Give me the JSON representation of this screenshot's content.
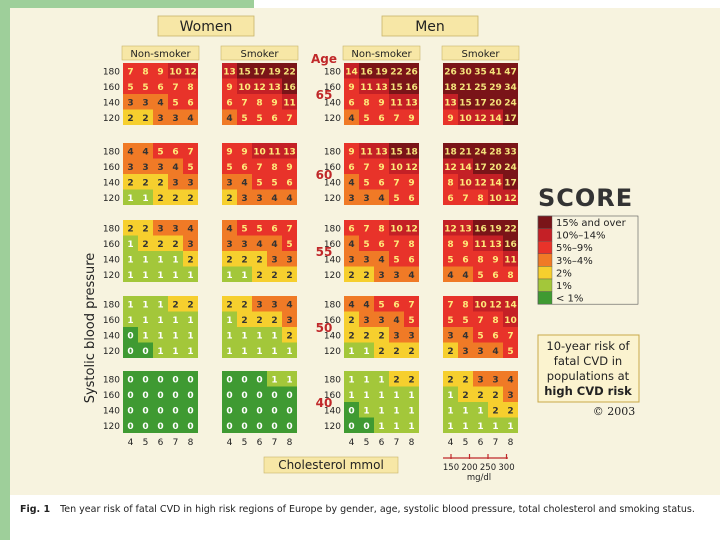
{
  "chart_data": {
    "type": "heatmap",
    "title_women": "Women",
    "title_men": "Men",
    "header_age": "Age",
    "smoking_labels": [
      "Non-smoker",
      "Smoker"
    ],
    "ylabel": "Systolic blood pressure",
    "xlabel": "Cholesterol mmol",
    "sbp_levels": [
      "180",
      "160",
      "140",
      "120"
    ],
    "cholesterol_ticks": [
      "4",
      "5",
      "6",
      "7",
      "8"
    ],
    "mgdl_ticks": [
      "150",
      "200",
      "250",
      "300"
    ],
    "mgdl_unit": "mg/dl",
    "ages": [
      "65",
      "60",
      "55",
      "50",
      "40"
    ],
    "panels": {
      "women_nonsmoker": [
        [
          [
            7,
            8,
            9,
            10,
            12
          ],
          [
            5,
            5,
            6,
            7,
            8
          ],
          [
            3,
            3,
            4,
            5,
            6
          ],
          [
            2,
            2,
            3,
            3,
            4
          ]
        ],
        [
          [
            4,
            4,
            5,
            6,
            7
          ],
          [
            3,
            3,
            3,
            4,
            5
          ],
          [
            2,
            2,
            2,
            3,
            3
          ],
          [
            1,
            1,
            2,
            2,
            2
          ]
        ],
        [
          [
            2,
            2,
            3,
            3,
            4
          ],
          [
            1,
            2,
            2,
            2,
            3
          ],
          [
            1,
            1,
            1,
            1,
            2
          ],
          [
            1,
            1,
            1,
            1,
            1
          ]
        ],
        [
          [
            1,
            1,
            1,
            2,
            2
          ],
          [
            1,
            1,
            1,
            1,
            1
          ],
          [
            0,
            1,
            1,
            1,
            1
          ],
          [
            0,
            0,
            1,
            1,
            1
          ]
        ],
        [
          [
            0,
            0,
            0,
            0,
            0
          ],
          [
            0,
            0,
            0,
            0,
            0
          ],
          [
            0,
            0,
            0,
            0,
            0
          ],
          [
            0,
            0,
            0,
            0,
            0
          ]
        ]
      ],
      "women_smoker": [
        [
          [
            13,
            15,
            17,
            19,
            22
          ],
          [
            9,
            10,
            12,
            13,
            16
          ],
          [
            6,
            7,
            8,
            9,
            11
          ],
          [
            4,
            5,
            5,
            6,
            7
          ]
        ],
        [
          [
            9,
            9,
            10,
            11,
            13
          ],
          [
            5,
            6,
            7,
            8,
            9
          ],
          [
            3,
            4,
            5,
            5,
            6
          ],
          [
            2,
            3,
            3,
            4,
            4
          ]
        ],
        [
          [
            4,
            5,
            5,
            6,
            7
          ],
          [
            3,
            3,
            4,
            4,
            5
          ],
          [
            2,
            2,
            2,
            3,
            3
          ],
          [
            1,
            1,
            2,
            2,
            2
          ]
        ],
        [
          [
            2,
            2,
            3,
            3,
            4
          ],
          [
            1,
            2,
            2,
            2,
            3
          ],
          [
            1,
            1,
            1,
            1,
            2
          ],
          [
            1,
            1,
            1,
            1,
            1
          ]
        ],
        [
          [
            0,
            0,
            0,
            1,
            1
          ],
          [
            0,
            0,
            0,
            0,
            0
          ],
          [
            0,
            0,
            0,
            0,
            0
          ],
          [
            0,
            0,
            0,
            0,
            0
          ]
        ]
      ],
      "men_nonsmoker": [
        [
          [
            14,
            16,
            19,
            22,
            26
          ],
          [
            9,
            11,
            13,
            15,
            16
          ],
          [
            6,
            8,
            9,
            11,
            13
          ],
          [
            4,
            5,
            6,
            7,
            9
          ]
        ],
        [
          [
            9,
            11,
            13,
            15,
            18
          ],
          [
            6,
            7,
            9,
            10,
            12
          ],
          [
            4,
            5,
            6,
            7,
            9
          ],
          [
            3,
            3,
            4,
            5,
            6
          ]
        ],
        [
          [
            6,
            7,
            8,
            10,
            12
          ],
          [
            4,
            5,
            6,
            7,
            8
          ],
          [
            3,
            3,
            4,
            5,
            6
          ],
          [
            2,
            2,
            3,
            3,
            4
          ]
        ],
        [
          [
            4,
            4,
            5,
            6,
            7
          ],
          [
            2,
            3,
            3,
            4,
            5
          ],
          [
            2,
            2,
            2,
            3,
            3
          ],
          [
            1,
            1,
            2,
            2,
            2
          ]
        ],
        [
          [
            1,
            1,
            1,
            2,
            2
          ],
          [
            1,
            1,
            1,
            1,
            1
          ],
          [
            0,
            1,
            1,
            1,
            1
          ],
          [
            0,
            0,
            1,
            1,
            1
          ]
        ]
      ],
      "men_smoker": [
        [
          [
            26,
            30,
            35,
            41,
            47
          ],
          [
            18,
            21,
            25,
            29,
            34
          ],
          [
            13,
            15,
            17,
            20,
            24
          ],
          [
            9,
            10,
            12,
            14,
            17
          ]
        ],
        [
          [
            18,
            21,
            24,
            28,
            33
          ],
          [
            12,
            14,
            17,
            20,
            24
          ],
          [
            8,
            10,
            12,
            14,
            17
          ],
          [
            6,
            7,
            8,
            10,
            12
          ]
        ],
        [
          [
            12,
            13,
            16,
            19,
            22
          ],
          [
            8,
            9,
            11,
            13,
            16
          ],
          [
            5,
            6,
            8,
            9,
            11
          ],
          [
            4,
            4,
            5,
            6,
            8
          ]
        ],
        [
          [
            7,
            8,
            10,
            12,
            14
          ],
          [
            5,
            5,
            7,
            8,
            10
          ],
          [
            3,
            4,
            5,
            6,
            7
          ],
          [
            2,
            3,
            3,
            4,
            5
          ]
        ],
        [
          [
            2,
            2,
            3,
            3,
            4
          ],
          [
            1,
            2,
            2,
            2,
            3
          ],
          [
            1,
            1,
            1,
            2,
            2
          ],
          [
            1,
            1,
            1,
            1,
            1
          ]
        ]
      ]
    },
    "legend": {
      "logo": "SCORE",
      "items": [
        {
          "label": "15% and over",
          "color": "#7a1418"
        },
        {
          "label": "10%–14%",
          "color": "#c42026"
        },
        {
          "label": "5%–9%",
          "color": "#e8332a"
        },
        {
          "label": "3%–4%",
          "color": "#f07a26"
        },
        {
          "label": "2%",
          "color": "#f6cf2e"
        },
        {
          "label": "1%",
          "color": "#a3c73a"
        },
        {
          "label": "< 1%",
          "color": "#3f9a32"
        }
      ],
      "box_text": [
        "10-year risk of",
        "fatal CVD in",
        "populations at",
        "high CVD risk"
      ],
      "copyright": "© 2003"
    },
    "colors": {
      "ge15": "#7a1418",
      "r10_14": "#c42026",
      "r5_9": "#e8332a",
      "r3_4": "#f07a26",
      "r2": "#f6cf2e",
      "r1": "#a3c73a",
      "lt1": "#3f9a32",
      "header_bg": "#f7e7a6",
      "age_text": "#c0282a",
      "panel_bg": "#f7f3df"
    }
  },
  "caption": {
    "fig": "Fig. 1",
    "text": "Ten year risk of fatal CVD in high risk regions of Europe by gender, age, systolic blood pressure, total cholesterol and smoking status."
  }
}
